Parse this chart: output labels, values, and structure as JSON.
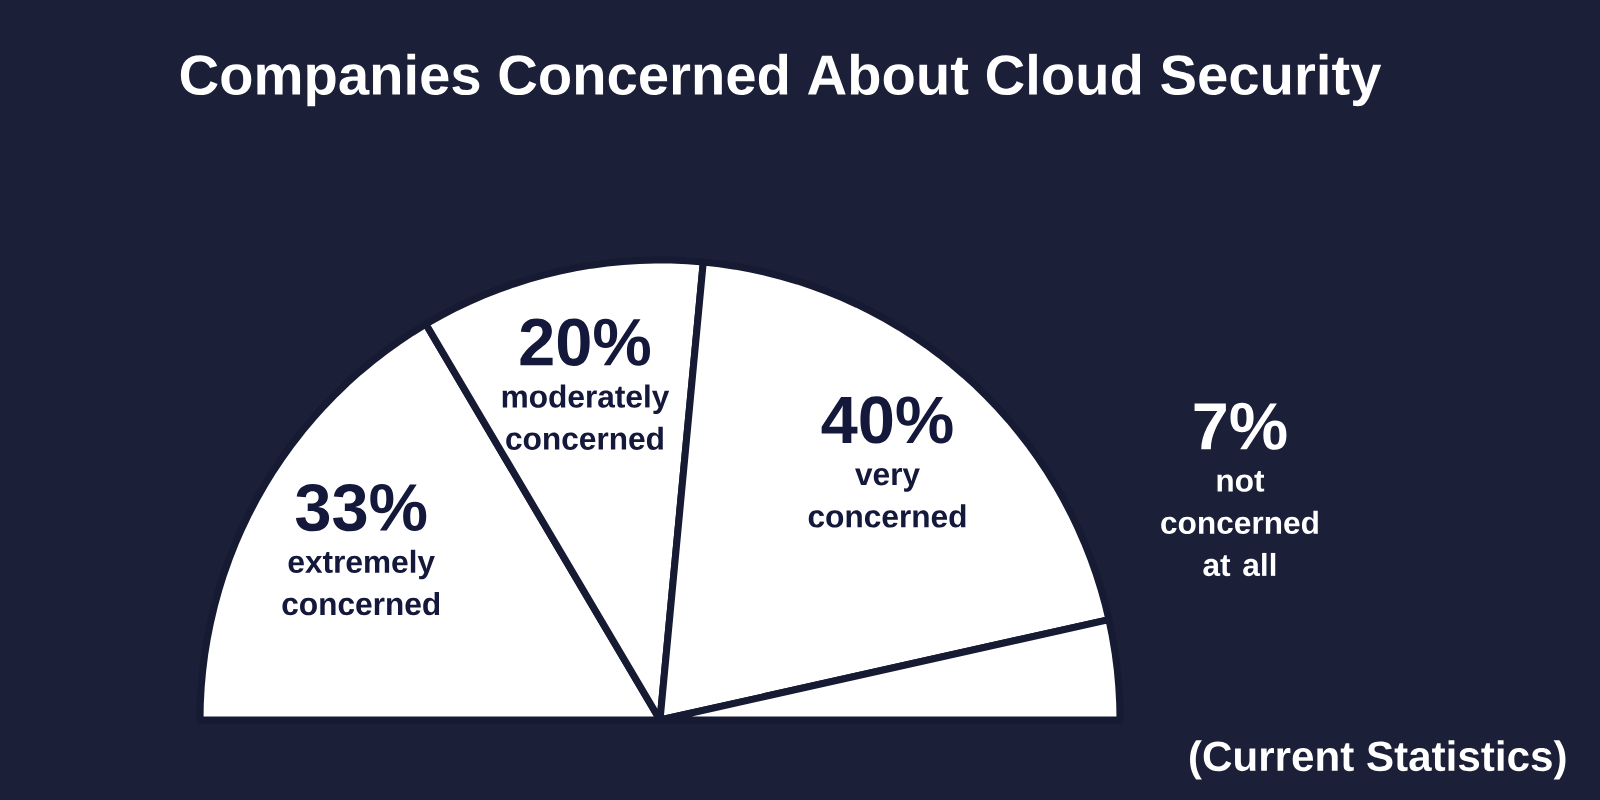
{
  "chart_data": {
    "type": "other",
    "title": "Companies Concerned About Cloud Security",
    "categories": [
      "extremely concerned",
      "moderately concerned",
      "very concerned",
      "not concerned at all"
    ],
    "values": [
      33,
      20,
      40,
      7
    ],
    "value_labels": [
      "33%",
      "20%",
      "40%",
      "7%"
    ],
    "colors": [
      "#ffffff",
      "#ffffff",
      "#ffffff",
      "#ffffff"
    ],
    "annotations": [
      "(Current Statistics)"
    ]
  }
}
